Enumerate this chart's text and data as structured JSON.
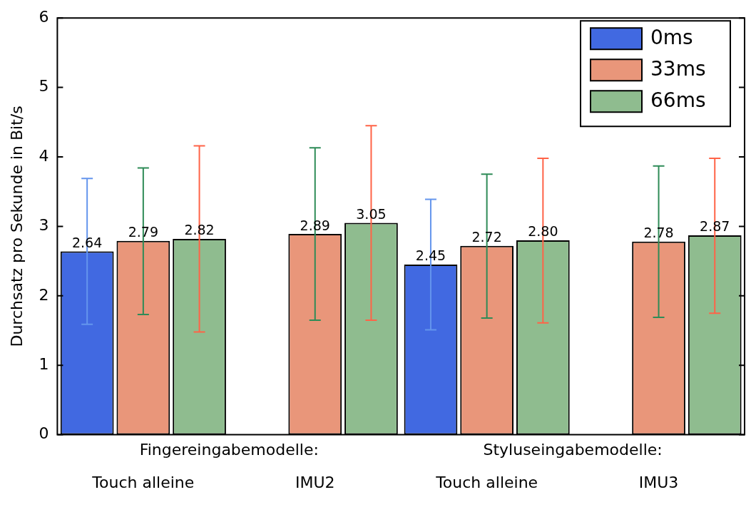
{
  "chart_data": {
    "type": "bar",
    "ylabel": "Durchsatz pro Sekunde in Bit/s",
    "categories": [
      "Touch alleine",
      "IMU2",
      "Touch alleine",
      "IMU3"
    ],
    "series": [
      {
        "name": "0ms",
        "color": "#4169e1",
        "values": [
          2.64,
          null,
          2.45,
          null
        ],
        "value_labels": [
          "2.64",
          null,
          "2.45",
          null
        ],
        "errors": [
          [
            1.59,
            3.69
          ],
          null,
          [
            1.51,
            3.39
          ],
          null
        ]
      },
      {
        "name": "33ms",
        "color": "#e9967a",
        "values": [
          2.79,
          2.89,
          2.72,
          2.78
        ],
        "value_labels": [
          "2.79",
          "2.89",
          "2.72",
          "2.78"
        ],
        "errors": [
          [
            1.73,
            3.84
          ],
          [
            1.65,
            4.13
          ],
          [
            1.68,
            3.75
          ],
          [
            1.69,
            3.87
          ]
        ]
      },
      {
        "name": "66ms",
        "color": "#8fbc8f",
        "values": [
          2.82,
          3.05,
          2.8,
          2.87
        ],
        "value_labels": [
          "2.82",
          "3.05",
          "2.80",
          "2.87"
        ],
        "errors": [
          [
            1.48,
            4.16
          ],
          [
            1.65,
            4.45
          ],
          [
            1.61,
            3.98
          ],
          [
            1.75,
            3.98
          ]
        ]
      }
    ],
    "annotations": [
      "Fingereingabemodelle:",
      "Styluseingabemodelle:"
    ],
    "ylim": [
      0,
      6
    ],
    "yticks": [
      0,
      1,
      2,
      3,
      4,
      5,
      6
    ],
    "grid": false,
    "legend": "top right"
  }
}
